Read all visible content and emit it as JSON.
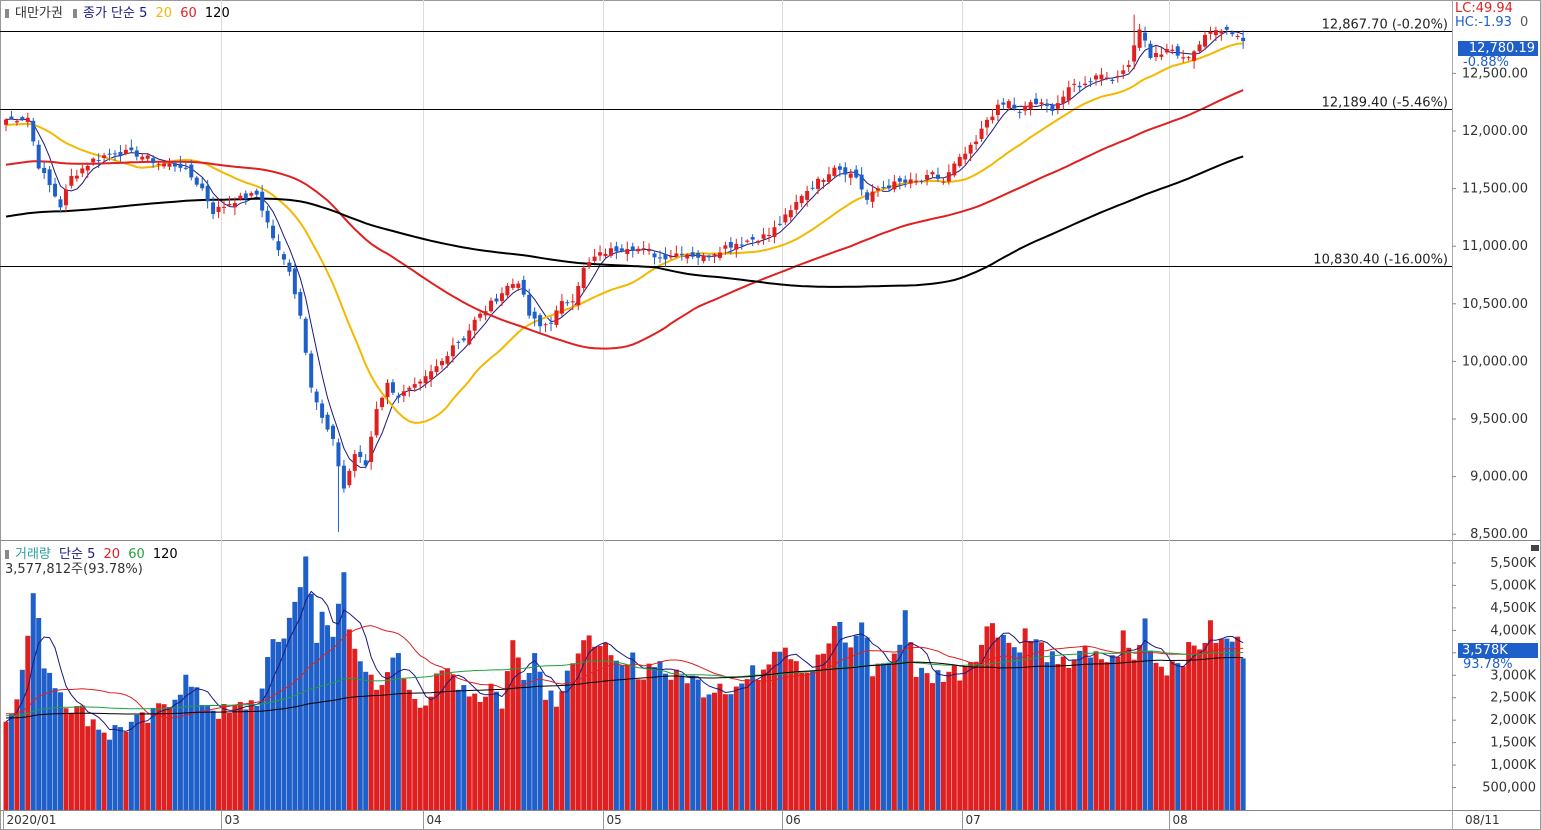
{
  "price_panel": {
    "legend": {
      "name": "대만가권",
      "ma_label": "종가 단순",
      "periods": [
        "5",
        "20",
        "60",
        "120"
      ],
      "period_colors": [
        "#1a1a80",
        "#f5b800",
        "#e02020",
        "#000000"
      ]
    },
    "corner_lc": "LC:49.94",
    "corner_hc": "HC:-1.93",
    "corner_tail": "0",
    "current_value": "12,780.19",
    "current_change": "-0.88%",
    "ref_lines": [
      {
        "value": 12867.7,
        "label": "12,867.70 (-0.20%)"
      },
      {
        "value": 12189.4,
        "label": "12,189.40 (-5.46%)"
      },
      {
        "value": 10830.4,
        "label": "10,830.40 (-16.00%)"
      }
    ],
    "axis_ticks": [
      {
        "v": 12500,
        "label": "12,500.00"
      },
      {
        "v": 12000,
        "label": "12,000.00"
      },
      {
        "v": 11500,
        "label": "11,500.00"
      },
      {
        "v": 11000,
        "label": "11,000.00"
      },
      {
        "v": 10500,
        "label": "10,500.00"
      },
      {
        "v": 10000,
        "label": "10,000.00"
      },
      {
        "v": 9500,
        "label": "9,500.00"
      },
      {
        "v": 9000,
        "label": "9,000.00"
      },
      {
        "v": 8500,
        "label": "8,500.00"
      }
    ]
  },
  "volume_panel": {
    "legend": {
      "name": "거래량",
      "ma_label": "단순",
      "periods": [
        "5",
        "20",
        "60",
        "120"
      ],
      "period_colors": [
        "#1a1a80",
        "#e02020",
        "#20a040",
        "#000000"
      ]
    },
    "info": "3,577,812주(93.78%)",
    "current_value": "3,578K",
    "current_pct": "93.78%",
    "axis_ticks": [
      {
        "v": 5500,
        "label": "5,500K"
      },
      {
        "v": 5000,
        "label": "5,000K"
      },
      {
        "v": 4500,
        "label": "4,500K"
      },
      {
        "v": 4000,
        "label": "4,000K"
      },
      {
        "v": 3500,
        "label": "3,500K"
      },
      {
        "v": 3000,
        "label": "3,000K"
      },
      {
        "v": 2500,
        "label": "2,500K"
      },
      {
        "v": 2000,
        "label": "2,000K"
      },
      {
        "v": 1500,
        "label": "1,500K"
      },
      {
        "v": 1000,
        "label": "1,000K"
      },
      {
        "v": 500,
        "label": "500,000"
      }
    ]
  },
  "x_axis": {
    "labels": [
      {
        "i": 0,
        "label": "2020/01"
      },
      {
        "i": 40,
        "label": "03"
      },
      {
        "i": 77,
        "label": "04"
      },
      {
        "i": 110,
        "label": "05"
      },
      {
        "i": 143,
        "label": "06"
      },
      {
        "i": 176,
        "label": "07"
      },
      {
        "i": 214,
        "label": "08"
      }
    ],
    "right_label": "08/11"
  },
  "colors": {
    "up": "#e02020",
    "down": "#1f5fc9",
    "bg": "#ffffff",
    "grid": "#d8d8d8"
  },
  "chart_data": {
    "type": "candlestick",
    "series_name": "대만가권",
    "price_range": [
      8450,
      13050
    ],
    "volume_range_k": [
      0,
      5900
    ],
    "close_keypoints": [
      [
        0,
        12100
      ],
      [
        4,
        12118
      ],
      [
        6,
        11700
      ],
      [
        10,
        11350
      ],
      [
        12,
        11600
      ],
      [
        16,
        11750
      ],
      [
        20,
        11820
      ],
      [
        24,
        11800
      ],
      [
        28,
        11720
      ],
      [
        32,
        11700
      ],
      [
        36,
        11500
      ],
      [
        38,
        11300
      ],
      [
        42,
        11400
      ],
      [
        46,
        11450
      ],
      [
        48,
        11200
      ],
      [
        50,
        10950
      ],
      [
        52,
        10800
      ],
      [
        54,
        10400
      ],
      [
        56,
        9800
      ],
      [
        58,
        9500
      ],
      [
        60,
        9300
      ],
      [
        62,
        8900
      ],
      [
        64,
        9200
      ],
      [
        66,
        9100
      ],
      [
        68,
        9600
      ],
      [
        70,
        9800
      ],
      [
        72,
        9700
      ],
      [
        74,
        9750
      ],
      [
        76,
        9800
      ],
      [
        78,
        9900
      ],
      [
        80,
        10000
      ],
      [
        82,
        10150
      ],
      [
        84,
        10200
      ],
      [
        86,
        10350
      ],
      [
        88,
        10450
      ],
      [
        92,
        10650
      ],
      [
        94,
        10700
      ],
      [
        96,
        10400
      ],
      [
        98,
        10300
      ],
      [
        100,
        10350
      ],
      [
        102,
        10500
      ],
      [
        104,
        10550
      ],
      [
        106,
        10800
      ],
      [
        108,
        10900
      ],
      [
        110,
        10950
      ],
      [
        114,
        11000
      ],
      [
        118,
        10950
      ],
      [
        120,
        10900
      ],
      [
        124,
        10950
      ],
      [
        128,
        10900
      ],
      [
        132,
        11000
      ],
      [
        136,
        11050
      ],
      [
        140,
        11100
      ],
      [
        144,
        11300
      ],
      [
        146,
        11450
      ],
      [
        150,
        11600
      ],
      [
        152,
        11700
      ],
      [
        156,
        11600
      ],
      [
        158,
        11400
      ],
      [
        160,
        11500
      ],
      [
        164,
        11550
      ],
      [
        168,
        11560
      ],
      [
        170,
        11620
      ],
      [
        172,
        11560
      ],
      [
        174,
        11700
      ],
      [
        176,
        11800
      ],
      [
        178,
        11900
      ],
      [
        180,
        12100
      ],
      [
        182,
        12200
      ],
      [
        184,
        12250
      ],
      [
        186,
        12150
      ],
      [
        188,
        12250
      ],
      [
        192,
        12200
      ],
      [
        194,
        12300
      ],
      [
        196,
        12400
      ],
      [
        198,
        12400
      ],
      [
        200,
        12500
      ],
      [
        204,
        12450
      ],
      [
        206,
        12600
      ],
      [
        208,
        12900
      ],
      [
        210,
        12650
      ],
      [
        214,
        12700
      ],
      [
        216,
        12620
      ],
      [
        218,
        12700
      ],
      [
        220,
        12810
      ],
      [
        222,
        12900
      ],
      [
        224,
        12880
      ],
      [
        226,
        12830
      ],
      [
        227,
        12780
      ]
    ],
    "volume_keypoints_k": [
      [
        0,
        2050
      ],
      [
        3,
        3000
      ],
      [
        5,
        4800
      ],
      [
        7,
        3350
      ],
      [
        9,
        2850
      ],
      [
        11,
        2500
      ],
      [
        13,
        2200
      ],
      [
        15,
        2100
      ],
      [
        17,
        1900
      ],
      [
        19,
        1700
      ],
      [
        21,
        1850
      ],
      [
        23,
        1900
      ],
      [
        25,
        1950
      ],
      [
        27,
        2050
      ],
      [
        29,
        2400
      ],
      [
        31,
        2600
      ],
      [
        33,
        2900
      ],
      [
        35,
        2500
      ],
      [
        37,
        2400
      ],
      [
        39,
        2200
      ],
      [
        41,
        2100
      ],
      [
        43,
        2300
      ],
      [
        45,
        2400
      ],
      [
        47,
        2600
      ],
      [
        49,
        3750
      ],
      [
        51,
        3900
      ],
      [
        53,
        4600
      ],
      [
        55,
        5700
      ],
      [
        57,
        3600
      ],
      [
        58,
        4400
      ],
      [
        60,
        3800
      ],
      [
        62,
        5500
      ],
      [
        63,
        4200
      ],
      [
        65,
        3100
      ],
      [
        67,
        2800
      ],
      [
        69,
        2600
      ],
      [
        71,
        3600
      ],
      [
        73,
        3000
      ],
      [
        75,
        2600
      ],
      [
        77,
        2400
      ],
      [
        79,
        2800
      ],
      [
        81,
        3100
      ],
      [
        83,
        2900
      ],
      [
        85,
        2700
      ],
      [
        87,
        2500
      ],
      [
        89,
        2800
      ],
      [
        91,
        2400
      ],
      [
        93,
        3700
      ],
      [
        95,
        3100
      ],
      [
        97,
        3500
      ],
      [
        99,
        2700
      ],
      [
        101,
        2500
      ],
      [
        103,
        3200
      ],
      [
        105,
        3400
      ],
      [
        107,
        3700
      ],
      [
        109,
        3900
      ],
      [
        111,
        3200
      ],
      [
        113,
        3100
      ],
      [
        115,
        3300
      ],
      [
        117,
        3000
      ],
      [
        119,
        3400
      ],
      [
        121,
        3100
      ],
      [
        123,
        2900
      ],
      [
        125,
        3000
      ],
      [
        127,
        2800
      ],
      [
        129,
        2700
      ],
      [
        131,
        2900
      ],
      [
        133,
        2700
      ],
      [
        135,
        2800
      ],
      [
        137,
        3000
      ],
      [
        139,
        3200
      ],
      [
        141,
        3700
      ],
      [
        143,
        3700
      ],
      [
        145,
        3400
      ],
      [
        147,
        3100
      ],
      [
        149,
        3300
      ],
      [
        151,
        3700
      ],
      [
        153,
        4100
      ],
      [
        155,
        3500
      ],
      [
        157,
        4300
      ],
      [
        159,
        3100
      ],
      [
        161,
        3300
      ],
      [
        163,
        3300
      ],
      [
        165,
        4450
      ],
      [
        167,
        3100
      ],
      [
        169,
        2950
      ],
      [
        171,
        3000
      ],
      [
        173,
        3100
      ],
      [
        175,
        3100
      ],
      [
        177,
        3400
      ],
      [
        179,
        3700
      ],
      [
        181,
        4250
      ],
      [
        183,
        3900
      ],
      [
        185,
        3600
      ],
      [
        187,
        3900
      ],
      [
        189,
        3700
      ],
      [
        191,
        3500
      ],
      [
        193,
        3100
      ],
      [
        195,
        3300
      ],
      [
        197,
        3600
      ],
      [
        199,
        3300
      ],
      [
        201,
        3400
      ],
      [
        203,
        3300
      ],
      [
        205,
        3850
      ],
      [
        207,
        3300
      ],
      [
        209,
        4200
      ],
      [
        211,
        3300
      ],
      [
        213,
        3200
      ],
      [
        215,
        3400
      ],
      [
        217,
        3500
      ],
      [
        219,
        3700
      ],
      [
        221,
        4000
      ],
      [
        223,
        3700
      ],
      [
        225,
        3800
      ],
      [
        227,
        3578
      ]
    ],
    "ma_periods_price": [
      5,
      20,
      60,
      120
    ],
    "ma_periods_volume": [
      5,
      20,
      60,
      120
    ]
  }
}
